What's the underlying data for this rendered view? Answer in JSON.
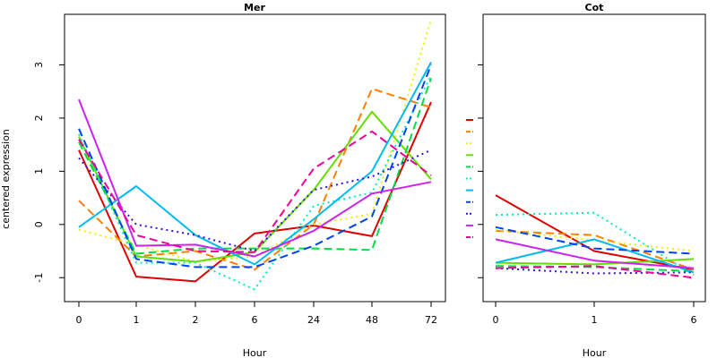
{
  "chart_data": [
    {
      "type": "line",
      "title": "Mer",
      "xlabel": "Hour",
      "ylabel": "centered expression",
      "categories": [
        "0",
        "1",
        "2",
        "6",
        "24",
        "48",
        "72"
      ],
      "yticks": [
        -1,
        0,
        1,
        2,
        3
      ],
      "ylim": [
        -1.45,
        3.95
      ],
      "grid": false,
      "series": [
        {
          "color": "#dd0000",
          "dash": "solid",
          "values": [
            1.4,
            -0.98,
            -1.07,
            -0.17,
            -0.02,
            -0.22,
            2.3
          ]
        },
        {
          "color": "#ff8000",
          "dash": "long",
          "values": [
            0.45,
            -0.6,
            -0.5,
            -0.85,
            0.0,
            2.55,
            2.2
          ]
        },
        {
          "color": "#f0f000",
          "dash": "dot",
          "values": [
            -0.1,
            -0.38,
            -0.7,
            -0.6,
            0.0,
            0.2,
            3.85
          ]
        },
        {
          "color": "#66dd00",
          "dash": "solid",
          "values": [
            1.65,
            -0.6,
            -0.7,
            -0.52,
            0.65,
            2.12,
            0.85
          ]
        },
        {
          "color": "#00dd44",
          "dash": "long",
          "values": [
            1.55,
            -0.55,
            -0.45,
            -0.45,
            -0.45,
            -0.48,
            2.75
          ]
        },
        {
          "color": "#00eebb",
          "dash": "dot",
          "values": [
            1.7,
            -0.72,
            -0.72,
            -1.22,
            0.35,
            0.6,
            2.8
          ]
        },
        {
          "color": "#00bbee",
          "dash": "solid",
          "values": [
            -0.05,
            0.72,
            -0.2,
            -0.75,
            0.1,
            1.0,
            3.05
          ]
        },
        {
          "color": "#0044ee",
          "dash": "long",
          "values": [
            1.8,
            -0.65,
            -0.8,
            -0.8,
            -0.4,
            0.15,
            3.0
          ]
        },
        {
          "color": "#3311dd",
          "dash": "dot",
          "values": [
            1.25,
            0.0,
            -0.2,
            -0.5,
            0.65,
            0.9,
            1.4
          ]
        },
        {
          "color": "#cc22ee",
          "dash": "solid",
          "values": [
            2.35,
            -0.4,
            -0.38,
            -0.6,
            -0.12,
            0.58,
            0.8
          ]
        },
        {
          "color": "#ee0099",
          "dash": "long",
          "values": [
            1.6,
            -0.2,
            -0.5,
            -0.52,
            1.05,
            1.75,
            0.92
          ]
        }
      ]
    },
    {
      "type": "line",
      "title": "Cot",
      "xlabel": "Hour",
      "categories": [
        "0",
        "1",
        "6"
      ],
      "ylim": [
        -1.45,
        3.95
      ],
      "grid": false,
      "series": [
        {
          "color": "#dd0000",
          "dash": "solid",
          "values": [
            0.55,
            -0.5,
            -0.85
          ]
        },
        {
          "color": "#ff8000",
          "dash": "long",
          "values": [
            -0.12,
            -0.2,
            -0.85
          ]
        },
        {
          "color": "#f0f000",
          "dash": "dot",
          "values": [
            -0.1,
            -0.3,
            -0.5
          ]
        },
        {
          "color": "#66dd00",
          "dash": "solid",
          "values": [
            -0.72,
            -0.75,
            -0.65
          ]
        },
        {
          "color": "#00dd44",
          "dash": "long",
          "values": [
            -0.78,
            -0.8,
            -0.88
          ]
        },
        {
          "color": "#00eebb",
          "dash": "dot",
          "values": [
            0.18,
            0.22,
            -0.95
          ]
        },
        {
          "color": "#00bbee",
          "dash": "solid",
          "values": [
            -0.72,
            -0.28,
            -0.9
          ]
        },
        {
          "color": "#0044ee",
          "dash": "long",
          "values": [
            -0.05,
            -0.45,
            -0.55
          ]
        },
        {
          "color": "#3311dd",
          "dash": "dot",
          "values": [
            -0.82,
            -0.92,
            -0.9
          ]
        },
        {
          "color": "#cc22ee",
          "dash": "solid",
          "values": [
            -0.28,
            -0.68,
            -0.82
          ]
        },
        {
          "color": "#ee0099",
          "dash": "long",
          "values": [
            -0.82,
            -0.78,
            -1.0
          ]
        }
      ]
    }
  ]
}
